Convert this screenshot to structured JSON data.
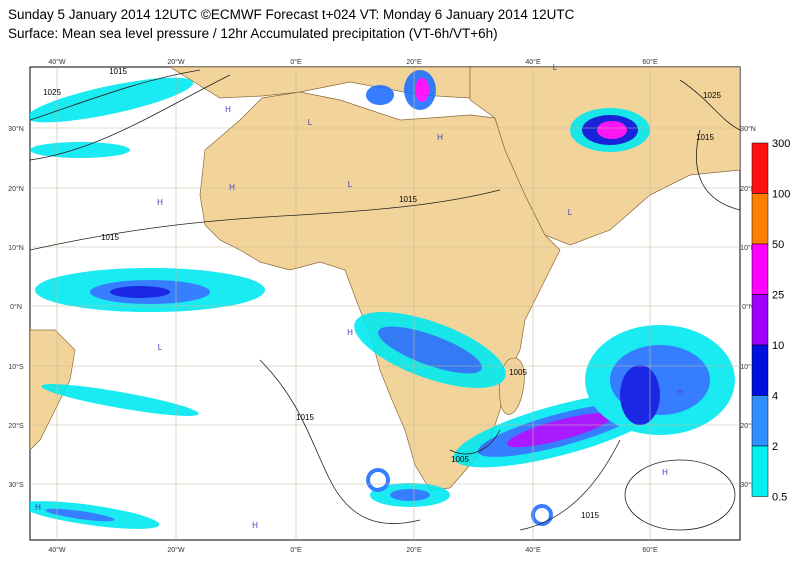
{
  "header": {
    "line1": "Sunday 5 January 2014 12UTC ©ECMWF Forecast t+024 VT: Monday 6 January 2014 12UTC",
    "line2": "Surface: Mean sea level pressure / 12hr Accumulated precipitation (VT-6h/VT+6h)"
  },
  "longitudes": [
    "40°W",
    "20°W",
    "0°E",
    "20°E",
    "40°E",
    "60°E"
  ],
  "latitudes": [
    "30°N",
    "20°N",
    "10°N",
    "0°N",
    "10°S",
    "20°S",
    "30°S"
  ],
  "legend": {
    "levels": [
      300,
      100,
      50,
      25,
      10,
      4,
      2,
      0.5
    ]
  },
  "isobar_labels": [
    "1025",
    "1015",
    "1015",
    "1015",
    "1015",
    "1005",
    "1005",
    "1015",
    "1025",
    "1015"
  ],
  "pressure_centres": [
    "H",
    "H",
    "H",
    "L",
    "L",
    "H",
    "H",
    "L",
    "H",
    "H",
    "L",
    "H",
    "H",
    "L"
  ]
}
